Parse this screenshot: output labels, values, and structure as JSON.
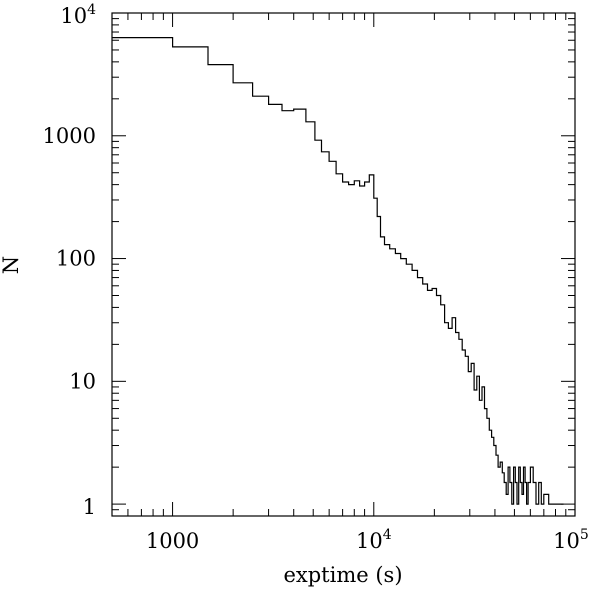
{
  "chart_data": {
    "type": "line",
    "style": "step",
    "title": "",
    "xlabel": "exptime (s)",
    "ylabel": "N",
    "xscale": "log",
    "yscale": "log",
    "xlim": [
      500,
      100000
    ],
    "ylim": [
      0.8,
      10000
    ],
    "grid": false,
    "x_tick_labels": [
      {
        "value": 1000,
        "label": "1000",
        "sup": ""
      },
      {
        "value": 10000,
        "label": "10",
        "sup": "4"
      },
      {
        "value": 100000,
        "label": "10",
        "sup": "5"
      }
    ],
    "y_tick_labels": [
      {
        "value": 1,
        "label": "1",
        "sup": ""
      },
      {
        "value": 10,
        "label": "10",
        "sup": ""
      },
      {
        "value": 100,
        "label": "100",
        "sup": ""
      },
      {
        "value": 1000,
        "label": "1000",
        "sup": ""
      },
      {
        "value": 10000,
        "label": "10",
        "sup": "4"
      }
    ],
    "x": [
      500,
      1000,
      1500,
      2000,
      2500,
      3000,
      3500,
      4000,
      4600,
      5100,
      5500,
      6000,
      6500,
      7000,
      7500,
      8000,
      8500,
      9000,
      9500,
      10000,
      10400,
      10800,
      11300,
      12000,
      12800,
      13600,
      14500,
      15500,
      16500,
      17500,
      18500,
      19500,
      20500,
      21500,
      22500,
      23500,
      24500,
      25500,
      26500,
      27500,
      28500,
      29500,
      30500,
      31500,
      32500,
      33500,
      34500,
      35500,
      36500,
      37500,
      38500,
      39500,
      40500,
      41500,
      42500,
      43500,
      44500,
      45500,
      46500,
      47500,
      48500,
      49500,
      50500,
      51500,
      52500,
      53500,
      54500,
      55500,
      56500,
      57500,
      58500,
      60000,
      62000,
      64000,
      66000,
      68000,
      70000,
      74000,
      80000
    ],
    "values": [
      6300,
      5300,
      3800,
      2700,
      2100,
      1800,
      1600,
      1650,
      1300,
      920,
      740,
      620,
      490,
      420,
      400,
      430,
      390,
      420,
      480,
      310,
      220,
      150,
      130,
      120,
      110,
      100,
      90,
      80,
      70,
      62,
      55,
      57,
      50,
      42,
      30,
      27,
      33,
      25,
      22,
      18,
      16,
      12,
      14,
      8.5,
      11,
      7,
      9,
      6,
      5,
      4,
      3.5,
      3,
      2.5,
      2,
      2.2,
      1.8,
      1.5,
      1.2,
      2,
      1.5,
      1,
      2,
      1.5,
      1,
      2,
      1.5,
      1.2,
      2,
      1.5,
      1,
      1.5,
      2,
      1.5,
      1,
      1.5,
      1,
      1.2,
      1,
      1
    ]
  }
}
